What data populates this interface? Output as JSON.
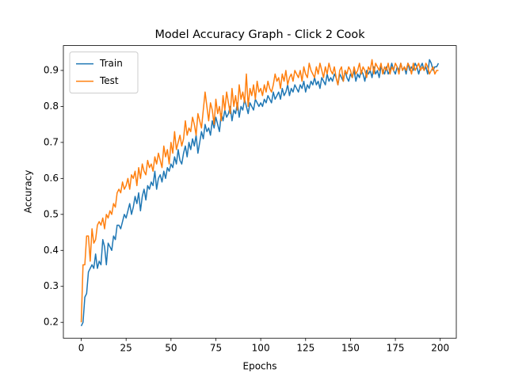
{
  "chart_data": {
    "type": "line",
    "title": "Model Accuracy Graph - Click 2 Cook",
    "x_label": "Epochs",
    "y_label": "Accuracy",
    "x": [
      0,
      1,
      2,
      3,
      4,
      5,
      6,
      7,
      8,
      9,
      10,
      11,
      12,
      13,
      14,
      15,
      16,
      17,
      18,
      19,
      20,
      21,
      22,
      23,
      24,
      25,
      26,
      27,
      28,
      29,
      30,
      31,
      32,
      33,
      34,
      35,
      36,
      37,
      38,
      39,
      40,
      41,
      42,
      43,
      44,
      45,
      46,
      47,
      48,
      49,
      50,
      51,
      52,
      53,
      54,
      55,
      56,
      57,
      58,
      59,
      60,
      61,
      62,
      63,
      64,
      65,
      66,
      67,
      68,
      69,
      70,
      71,
      72,
      73,
      74,
      75,
      76,
      77,
      78,
      79,
      80,
      81,
      82,
      83,
      84,
      85,
      86,
      87,
      88,
      89,
      90,
      91,
      92,
      93,
      94,
      95,
      96,
      97,
      98,
      99,
      100,
      101,
      102,
      103,
      104,
      105,
      106,
      107,
      108,
      109,
      110,
      111,
      112,
      113,
      114,
      115,
      116,
      117,
      118,
      119,
      120,
      121,
      122,
      123,
      124,
      125,
      126,
      127,
      128,
      129,
      130,
      131,
      132,
      133,
      134,
      135,
      136,
      137,
      138,
      139,
      140,
      141,
      142,
      143,
      144,
      145,
      146,
      147,
      148,
      149,
      150,
      151,
      152,
      153,
      154,
      155,
      156,
      157,
      158,
      159,
      160,
      161,
      162,
      163,
      164,
      165,
      166,
      167,
      168,
      169,
      170,
      171,
      172,
      173,
      174,
      175,
      176,
      177,
      178,
      179,
      180,
      181,
      182,
      183,
      184,
      185,
      186,
      187,
      188,
      189,
      190,
      191,
      192,
      193,
      194,
      195,
      196,
      197,
      198,
      199
    ],
    "series": [
      {
        "name": "Train",
        "color": "#1f77b4",
        "values": [
          0.19,
          0.2,
          0.27,
          0.28,
          0.34,
          0.35,
          0.36,
          0.35,
          0.39,
          0.35,
          0.37,
          0.36,
          0.43,
          0.41,
          0.36,
          0.42,
          0.41,
          0.4,
          0.44,
          0.43,
          0.47,
          0.47,
          0.46,
          0.48,
          0.5,
          0.49,
          0.51,
          0.53,
          0.5,
          0.52,
          0.55,
          0.53,
          0.56,
          0.51,
          0.55,
          0.57,
          0.54,
          0.58,
          0.57,
          0.59,
          0.58,
          0.62,
          0.57,
          0.6,
          0.61,
          0.59,
          0.62,
          0.6,
          0.63,
          0.62,
          0.64,
          0.63,
          0.66,
          0.64,
          0.68,
          0.65,
          0.64,
          0.67,
          0.69,
          0.66,
          0.7,
          0.68,
          0.71,
          0.69,
          0.72,
          0.67,
          0.7,
          0.73,
          0.71,
          0.75,
          0.73,
          0.74,
          0.72,
          0.76,
          0.74,
          0.77,
          0.75,
          0.73,
          0.78,
          0.76,
          0.79,
          0.77,
          0.78,
          0.8,
          0.76,
          0.79,
          0.78,
          0.81,
          0.77,
          0.8,
          0.79,
          0.82,
          0.8,
          0.78,
          0.81,
          0.8,
          0.79,
          0.82,
          0.81,
          0.8,
          0.81,
          0.8,
          0.82,
          0.81,
          0.83,
          0.82,
          0.81,
          0.84,
          0.82,
          0.83,
          0.84,
          0.82,
          0.85,
          0.83,
          0.84,
          0.86,
          0.83,
          0.85,
          0.84,
          0.86,
          0.85,
          0.84,
          0.86,
          0.85,
          0.87,
          0.84,
          0.86,
          0.85,
          0.87,
          0.86,
          0.88,
          0.86,
          0.87,
          0.85,
          0.88,
          0.87,
          0.86,
          0.89,
          0.87,
          0.88,
          0.87,
          0.89,
          0.88,
          0.86,
          0.89,
          0.88,
          0.87,
          0.9,
          0.88,
          0.87,
          0.89,
          0.88,
          0.9,
          0.87,
          0.89,
          0.88,
          0.9,
          0.89,
          0.87,
          0.9,
          0.89,
          0.9,
          0.88,
          0.91,
          0.89,
          0.9,
          0.88,
          0.91,
          0.9,
          0.89,
          0.91,
          0.89,
          0.9,
          0.92,
          0.9,
          0.89,
          0.91,
          0.9,
          0.92,
          0.9,
          0.91,
          0.89,
          0.92,
          0.9,
          0.91,
          0.9,
          0.92,
          0.91,
          0.89,
          0.91,
          0.92,
          0.9,
          0.91,
          0.89,
          0.93,
          0.92,
          0.9,
          0.91,
          0.91,
          0.92
        ]
      },
      {
        "name": "Test",
        "color": "#ff7f0e",
        "values": [
          0.2,
          0.36,
          0.36,
          0.44,
          0.44,
          0.37,
          0.46,
          0.42,
          0.43,
          0.47,
          0.48,
          0.47,
          0.49,
          0.46,
          0.5,
          0.49,
          0.51,
          0.5,
          0.53,
          0.52,
          0.56,
          0.57,
          0.56,
          0.59,
          0.57,
          0.58,
          0.6,
          0.57,
          0.61,
          0.6,
          0.62,
          0.58,
          0.63,
          0.6,
          0.64,
          0.62,
          0.61,
          0.65,
          0.63,
          0.64,
          0.62,
          0.66,
          0.64,
          0.67,
          0.65,
          0.63,
          0.69,
          0.66,
          0.68,
          0.64,
          0.7,
          0.67,
          0.73,
          0.68,
          0.7,
          0.72,
          0.69,
          0.71,
          0.76,
          0.72,
          0.74,
          0.73,
          0.77,
          0.75,
          0.72,
          0.78,
          0.76,
          0.74,
          0.79,
          0.84,
          0.8,
          0.76,
          0.81,
          0.79,
          0.75,
          0.82,
          0.78,
          0.8,
          0.76,
          0.83,
          0.79,
          0.84,
          0.81,
          0.78,
          0.85,
          0.8,
          0.83,
          0.79,
          0.86,
          0.82,
          0.84,
          0.81,
          0.89,
          0.8,
          0.85,
          0.83,
          0.86,
          0.82,
          0.87,
          0.84,
          0.85,
          0.83,
          0.86,
          0.84,
          0.87,
          0.85,
          0.84,
          0.86,
          0.89,
          0.87,
          0.88,
          0.85,
          0.89,
          0.87,
          0.9,
          0.86,
          0.88,
          0.89,
          0.87,
          0.9,
          0.89,
          0.88,
          0.9,
          0.87,
          0.91,
          0.89,
          0.88,
          0.92,
          0.9,
          0.89,
          0.88,
          0.91,
          0.89,
          0.92,
          0.9,
          0.88,
          0.91,
          0.89,
          0.92,
          0.9,
          0.89,
          0.91,
          0.88,
          0.86,
          0.9,
          0.91,
          0.87,
          0.9,
          0.89,
          0.91,
          0.9,
          0.88,
          0.91,
          0.89,
          0.9,
          0.92,
          0.89,
          0.91,
          0.9,
          0.88,
          0.91,
          0.9,
          0.93,
          0.89,
          0.92,
          0.91,
          0.9,
          0.92,
          0.89,
          0.91,
          0.9,
          0.92,
          0.89,
          0.91,
          0.9,
          0.92,
          0.91,
          0.89,
          0.92,
          0.9,
          0.91,
          0.9,
          0.92,
          0.91,
          0.89,
          0.92,
          0.9,
          0.91,
          0.92,
          0.9,
          0.91,
          0.9,
          0.92,
          0.91,
          0.89,
          0.9,
          0.91,
          0.89,
          0.9,
          0.9
        ]
      }
    ],
    "xlim": [
      -9.95,
      208.95
    ],
    "ylim": [
      0.156,
      0.969
    ],
    "xticks": [
      0,
      25,
      50,
      75,
      100,
      125,
      150,
      175,
      200
    ],
    "yticks": [
      0.2,
      0.3,
      0.4,
      0.5,
      0.6,
      0.7,
      0.8,
      0.9
    ],
    "legend": "upper left"
  }
}
